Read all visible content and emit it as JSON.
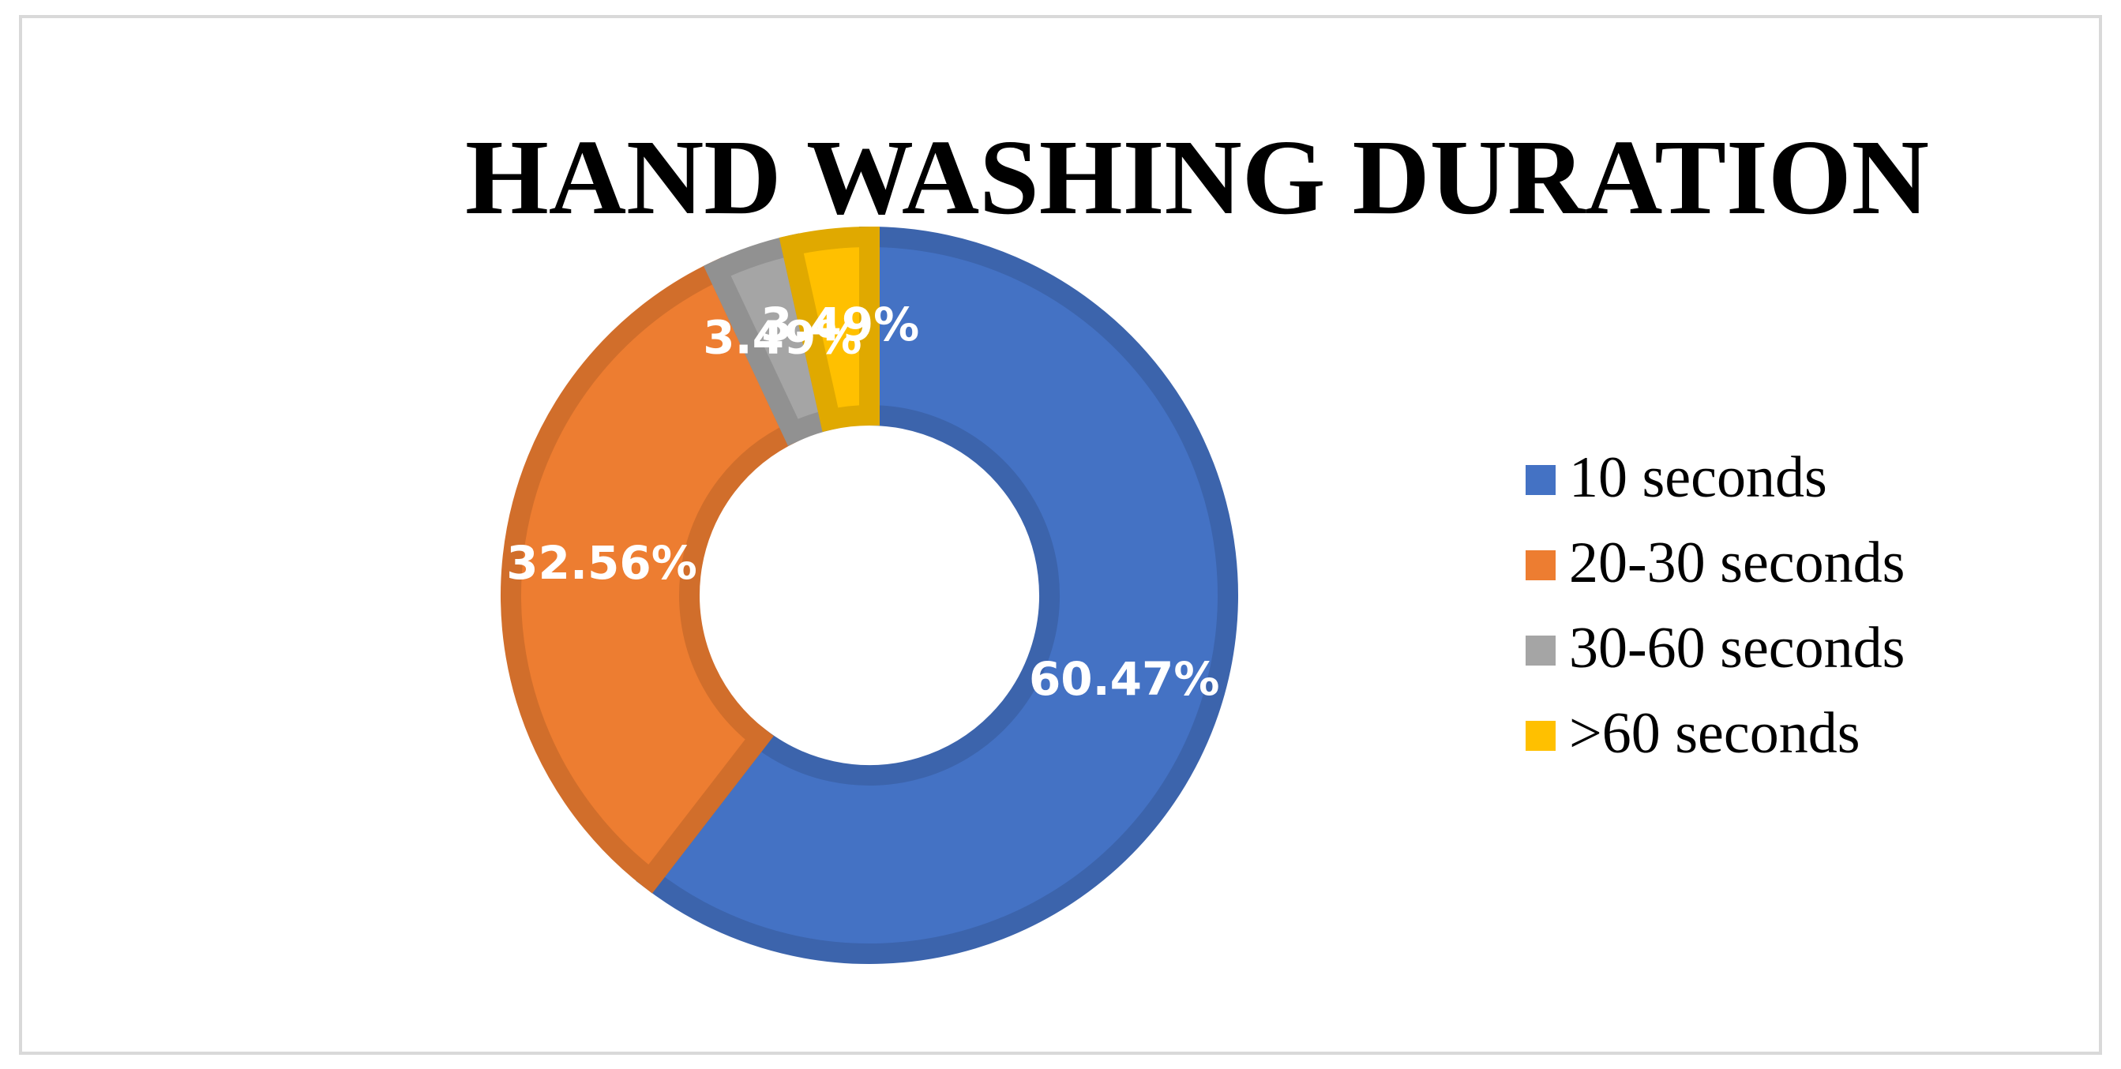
{
  "chart_data": {
    "type": "donut",
    "title": "HAND WASHING DURATION",
    "categories": [
      "10 seconds",
      "20-30 seconds",
      "30-60 seconds",
      ">60 seconds"
    ],
    "values": [
      60.47,
      32.56,
      3.49,
      3.49
    ],
    "value_labels": [
      "60.47%",
      "32.56%",
      "3.49%",
      "3.49%"
    ],
    "colors": [
      "#4472c4",
      "#ed7d31",
      "#a5a5a5",
      "#ffc000"
    ],
    "legend": "right"
  }
}
